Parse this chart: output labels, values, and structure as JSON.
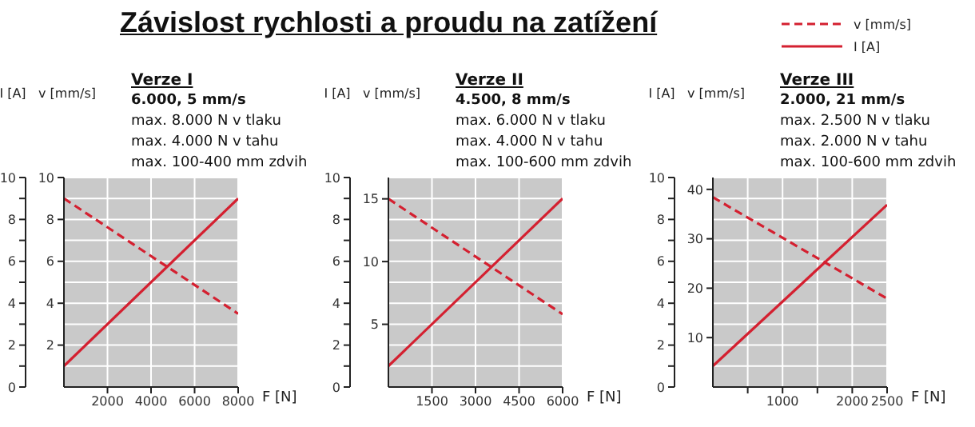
{
  "chart_data": [
    {
      "type": "line",
      "title": "Závislost rychlosti a proudu na zatížení",
      "subtitle": "Verze I",
      "annotations": [
        "6.000, 5 mm/s",
        "max. 8.000 N  v tlaku",
        "max. 4.000 N  v tahu",
        "max. 100-400 mm  zdvih"
      ],
      "xlabel": "F [N]",
      "ylabel": "I [A]",
      "y2label": "v [mm/s]",
      "xlim": [
        0,
        8000
      ],
      "xticks": [
        2000,
        4000,
        6000,
        8000
      ],
      "ylim": [
        0,
        10
      ],
      "yticks": [
        0,
        {
          "value": 1,
          "label": null
        },
        2,
        {
          "value": 3,
          "label": null
        },
        4,
        {
          "value": 5,
          "label": null
        },
        6,
        {
          "value": 7,
          "label": null
        },
        8,
        {
          "value": 9,
          "label": null
        },
        10
      ],
      "y2lim": [
        0,
        10
      ],
      "y2ticks": [
        2,
        4,
        6,
        8,
        10
      ],
      "grid": true,
      "series": [
        {
          "color": "#d42030",
          "line_style": "dashed",
          "axis": "y2",
          "x": [
            0,
            8000
          ],
          "values": [
            9,
            3.5
          ]
        },
        {
          "color": "#d42030",
          "line_style": "solid",
          "x": [
            0,
            8000
          ],
          "values": [
            1,
            9
          ]
        }
      ]
    },
    {
      "type": "line",
      "subtitle": "Verze II",
      "annotations": [
        "4.500, 8 mm/s",
        "max. 6.000 N  v tlaku",
        "max. 4.000 N  v tahu",
        "max. 100-600 mm  zdvih"
      ],
      "xlabel": "F [N]",
      "ylabel": "I [A]",
      "y2label": "v [mm/s]",
      "xlim": [
        0,
        6000
      ],
      "xticks": [
        1500,
        3000,
        4500,
        6000
      ],
      "ylim": [
        0,
        10
      ],
      "yticks": [
        0,
        {
          "value": 1,
          "label": null
        },
        2,
        {
          "value": 3,
          "label": null
        },
        4,
        {
          "value": 5,
          "label": null
        },
        6,
        {
          "value": 7,
          "label": null
        },
        8,
        {
          "value": 9,
          "label": null
        },
        10
      ],
      "y2lim": [
        0,
        16.7
      ],
      "y2ticks": [
        5,
        10,
        15
      ],
      "grid": true,
      "series": [
        {
          "color": "#d42030",
          "line_style": "dashed",
          "axis": "y2",
          "x": [
            0,
            6000
          ],
          "values": [
            15,
            5.8
          ]
        },
        {
          "color": "#d42030",
          "line_style": "solid",
          "x": [
            0,
            6000
          ],
          "values": [
            1,
            9
          ]
        }
      ]
    },
    {
      "type": "line",
      "subtitle": "Verze III",
      "annotations": [
        "2.000, 21 mm/s",
        "max. 2.500 N  v tlaku",
        "max. 2.000 N  v tahu",
        "max. 100-600 mm  zdvih"
      ],
      "xlabel": "F [N]",
      "ylabel": "I [A]",
      "y2label": "v [mm/s]",
      "xlim": [
        0,
        2500
      ],
      "xticks": [
        {
          "value": 500,
          "label": null
        },
        1000,
        {
          "value": 1500,
          "label": null
        },
        2000,
        2500
      ],
      "ylim": [
        0,
        10
      ],
      "yticks": [
        0,
        {
          "value": 1,
          "label": null
        },
        2,
        {
          "value": 3,
          "label": null
        },
        4,
        {
          "value": 5,
          "label": null
        },
        6,
        {
          "value": 7,
          "label": null
        },
        8,
        {
          "value": 9,
          "label": null
        },
        10
      ],
      "y2lim": [
        0,
        42.4
      ],
      "y2ticks": [
        10,
        20,
        30,
        40
      ],
      "grid": true,
      "legend": "top right",
      "series": [
        {
          "name": "v [mm/s]",
          "color": "#d42030",
          "line_style": "dashed",
          "axis": "y2",
          "x": [
            0,
            2500
          ],
          "values": [
            38.4,
            17.9
          ]
        },
        {
          "name": "I [A]",
          "color": "#d42030",
          "line_style": "solid",
          "x": [
            0,
            2500
          ],
          "values": [
            1,
            8.7
          ]
        }
      ]
    }
  ]
}
